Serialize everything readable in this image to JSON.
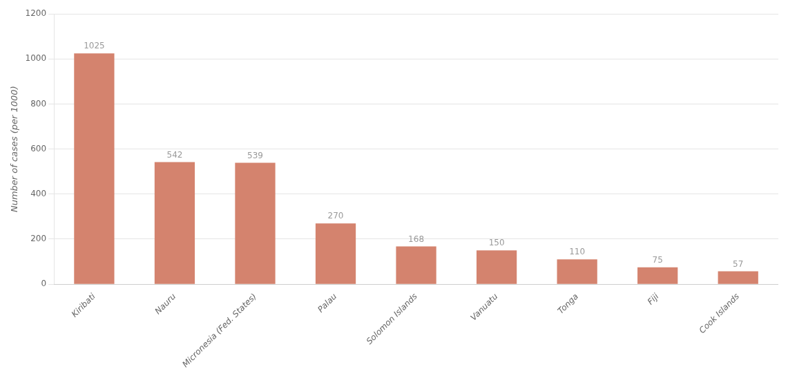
{
  "chart_data": {
    "type": "bar",
    "categories": [
      "Kiribati",
      "Nauru",
      "Micronesia (Fed. States)",
      "Palau",
      "Solomon Islands",
      "Vanuatu",
      "Tonga",
      "Fiji",
      "Cook Islands"
    ],
    "values": [
      1025,
      542,
      539,
      270,
      168,
      150,
      110,
      75,
      57
    ],
    "color": "#d4836e",
    "ylabel": "Number of cases (per 1000)",
    "ylim": [
      0,
      1200
    ],
    "yticks": [
      0,
      200,
      400,
      600,
      800,
      1000,
      1200
    ],
    "grid": true,
    "data_labels": true
  }
}
